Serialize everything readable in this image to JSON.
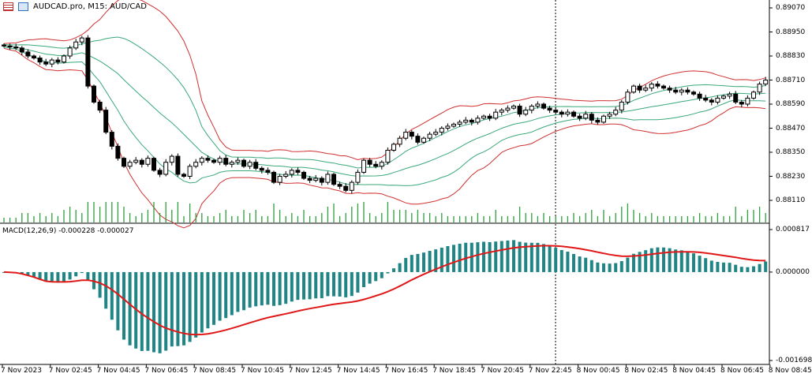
{
  "header": {
    "symbol_title": "AUDCAD.pro, M15:  AUD/CAD",
    "icons": [
      "chart-list-icon",
      "symbol-icon"
    ]
  },
  "macd_label": "MACD(12,26,9) -0.000228 -0.000027",
  "price_axis": [
    "0.89070",
    "0.88950",
    "0.88830",
    "0.88710",
    "0.88590",
    "0.88470",
    "0.88350",
    "0.88230",
    "0.88110"
  ],
  "macd_axis": [
    "0.000817",
    "0.000000",
    "-0.001698"
  ],
  "time_axis": [
    "7 Nov 2023",
    "7 Nov 02:45",
    "7 Nov 04:45",
    "7 Nov 06:45",
    "7 Nov 08:45",
    "7 Nov 10:45",
    "7 Nov 12:45",
    "7 Nov 14:45",
    "7 Nov 16:45",
    "7 Nov 18:45",
    "7 Nov 20:45",
    "7 Nov 22:45",
    "8 Nov 00:45",
    "8 Nov 02:45",
    "8 Nov 04:45",
    "8 Nov 06:45",
    "8 Nov 08:45"
  ],
  "colors": {
    "bands_outer": "#d03030",
    "bands_inner": "#3aa87a",
    "macd_hist": "#1f8585",
    "macd_signal": "#e01818",
    "volume": "#2e9e3e"
  },
  "chart_data": {
    "type": "candlestick",
    "symbol": "AUDCAD.pro",
    "timeframe": "M15",
    "price_range": [
      0.8805,
      0.8911
    ],
    "macd_range": [
      -0.001698,
      0.000817
    ],
    "closes": [
      0.8888,
      0.88875,
      0.8887,
      0.8885,
      0.8883,
      0.8882,
      0.888,
      0.8879,
      0.8881,
      0.888,
      0.8883,
      0.8887,
      0.889,
      0.8892,
      0.8868,
      0.886,
      0.8856,
      0.8845,
      0.8838,
      0.8832,
      0.8828,
      0.883,
      0.8831,
      0.8829,
      0.8832,
      0.8826,
      0.8824,
      0.883,
      0.8833,
      0.8824,
      0.8823,
      0.8828,
      0.883,
      0.8832,
      0.8831,
      0.883,
      0.8832,
      0.8829,
      0.883,
      0.8831,
      0.8828,
      0.883,
      0.8827,
      0.8826,
      0.8825,
      0.882,
      0.8823,
      0.8824,
      0.8826,
      0.8825,
      0.8822,
      0.8821,
      0.8822,
      0.882,
      0.8824,
      0.8819,
      0.8818,
      0.8816,
      0.882,
      0.8825,
      0.8831,
      0.8829,
      0.8828,
      0.883,
      0.8836,
      0.8839,
      0.8842,
      0.8845,
      0.8843,
      0.884,
      0.8842,
      0.8844,
      0.8845,
      0.8847,
      0.8848,
      0.8849,
      0.885,
      0.8851,
      0.885,
      0.8852,
      0.8853,
      0.8852,
      0.8855,
      0.8856,
      0.8857,
      0.8858,
      0.8854,
      0.8856,
      0.8858,
      0.8859,
      0.8857,
      0.8856,
      0.8855,
      0.8854,
      0.8855,
      0.8853,
      0.8852,
      0.8854,
      0.8851,
      0.885,
      0.8853,
      0.8854,
      0.8856,
      0.886,
      0.8865,
      0.8868,
      0.8866,
      0.8867,
      0.8869,
      0.8868,
      0.8867,
      0.8866,
      0.8865,
      0.8866,
      0.8865,
      0.8864,
      0.8862,
      0.8861,
      0.886,
      0.8862,
      0.8863,
      0.8864,
      0.886,
      0.8859,
      0.8862,
      0.8865,
      0.8869,
      0.8871
    ]
  }
}
